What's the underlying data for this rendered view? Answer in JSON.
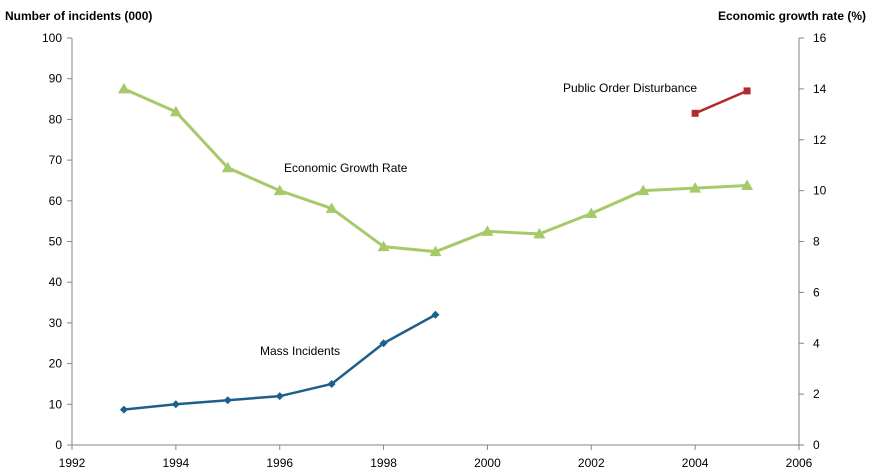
{
  "chart_data": {
    "type": "line",
    "y_left_label": "Number of incidents (000)",
    "y_right_label": "Economic growth rate (%)",
    "xlim": [
      1992,
      2006
    ],
    "ylim_left": [
      0,
      100
    ],
    "ylim_right": [
      0,
      16
    ],
    "x_ticks": [
      "1992",
      "1994",
      "1996",
      "1998",
      "2000",
      "2002",
      "2004",
      "2006"
    ],
    "y_left_ticks": [
      "0",
      "10",
      "20",
      "30",
      "40",
      "50",
      "60",
      "70",
      "80",
      "90",
      "100"
    ],
    "y_right_ticks": [
      "0",
      "2",
      "4",
      "6",
      "8",
      "10",
      "12",
      "14",
      "16"
    ],
    "grid": false,
    "legend": "none",
    "series": [
      {
        "name": "Economic Growth Rate",
        "axis": "right",
        "color": "#a6c96a",
        "marker": "triangle",
        "x": [
          1993,
          1994,
          1995,
          1996,
          1997,
          1998,
          1999,
          2000,
          2001,
          2002,
          2003,
          2004,
          2005
        ],
        "y": [
          14.0,
          13.1,
          10.9,
          10.0,
          9.3,
          7.8,
          7.6,
          8.4,
          8.3,
          9.1,
          10.0,
          10.1,
          10.2
        ]
      },
      {
        "name": "Mass Incidents",
        "axis": "left",
        "color": "#1f5f8b",
        "marker": "diamond",
        "x": [
          1993,
          1994,
          1995,
          1996,
          1997,
          1998,
          1999
        ],
        "y": [
          8.7,
          10.0,
          11.0,
          12.0,
          15.0,
          25.0,
          32.0
        ]
      },
      {
        "name": "Public Order Disturbance",
        "axis": "left",
        "color": "#b22a2e",
        "marker": "square",
        "x": [
          2004,
          2005
        ],
        "y": [
          81.5,
          87.0
        ]
      }
    ]
  }
}
